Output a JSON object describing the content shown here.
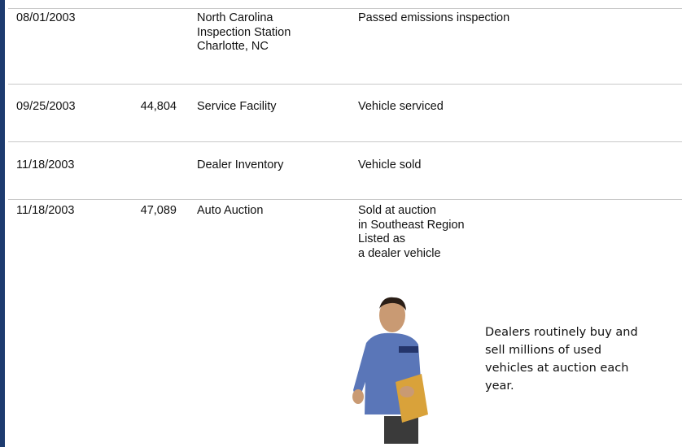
{
  "table": {
    "rows": [
      {
        "date": "08/01/2003",
        "source": [
          "North Carolina",
          "Inspection Station",
          "Charlotte, NC"
        ],
        "comments": [
          "Passed emissions inspection"
        ]
      },
      {
        "date": "09/25/2003",
        "odometer": "44,804",
        "source": [
          "Service Facility"
        ],
        "comments": [
          "Vehicle serviced"
        ]
      },
      {
        "date": "11/18/2003",
        "source": [
          "Dealer Inventory"
        ],
        "comments": [
          "Vehicle sold"
        ]
      },
      {
        "date": "11/18/2003",
        "odometer": "47,089",
        "source": [
          "Auto Auction"
        ],
        "comments": [
          "Sold at auction",
          "in Southeast Region",
          "Listed as",
          "a dealer vehicle"
        ]
      }
    ]
  },
  "callout": {
    "text": [
      "Dealers routinely buy and",
      "sell millions of used",
      "vehicles at auction each",
      "year."
    ]
  }
}
